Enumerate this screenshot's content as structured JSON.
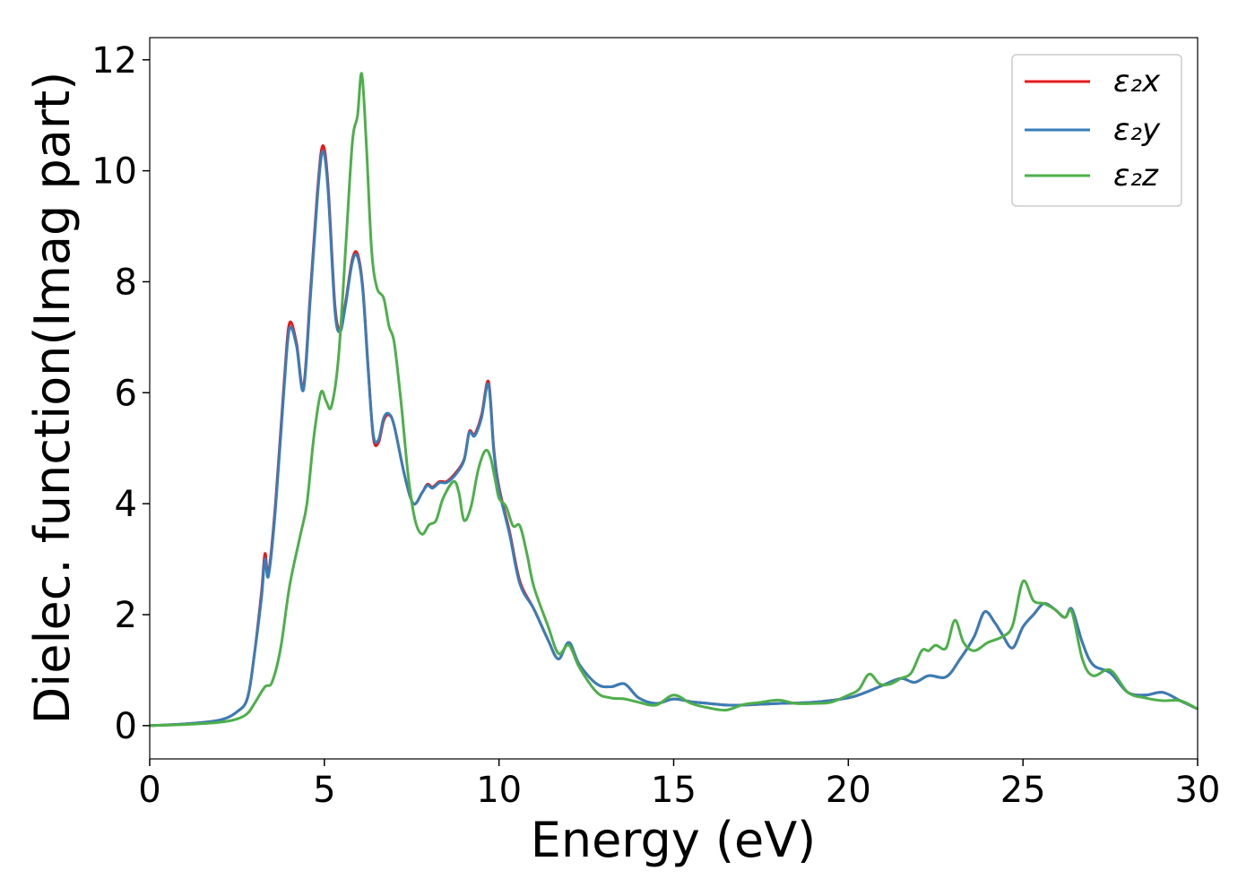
{
  "chart_data": {
    "type": "line",
    "title": "",
    "xlabel": "Energy (eV)",
    "ylabel": "Dielec. function(Imag part)",
    "xlim": [
      0,
      30
    ],
    "ylim": [
      -0.6,
      12.4
    ],
    "xticks": [
      0,
      5,
      10,
      15,
      20,
      25,
      30
    ],
    "yticks": [
      0,
      2,
      4,
      6,
      8,
      10,
      12
    ],
    "grid": false,
    "legend_position": "top-right",
    "series": [
      {
        "name": "ε₂x",
        "color": "#e41a1c",
        "points": [
          [
            0,
            0
          ],
          [
            1,
            0.03
          ],
          [
            2,
            0.1
          ],
          [
            2.5,
            0.25
          ],
          [
            2.8,
            0.5
          ],
          [
            3.0,
            1.3
          ],
          [
            3.2,
            2.4
          ],
          [
            3.3,
            3.1
          ],
          [
            3.4,
            2.75
          ],
          [
            3.6,
            4.0
          ],
          [
            3.85,
            6.2
          ],
          [
            4.0,
            7.25
          ],
          [
            4.2,
            6.9
          ],
          [
            4.4,
            6.1
          ],
          [
            4.6,
            7.8
          ],
          [
            4.8,
            9.6
          ],
          [
            4.95,
            10.45
          ],
          [
            5.1,
            9.8
          ],
          [
            5.3,
            7.6
          ],
          [
            5.45,
            7.15
          ],
          [
            5.6,
            7.6
          ],
          [
            5.8,
            8.4
          ],
          [
            5.95,
            8.5
          ],
          [
            6.1,
            7.9
          ],
          [
            6.25,
            6.5
          ],
          [
            6.4,
            5.2
          ],
          [
            6.55,
            5.1
          ],
          [
            6.7,
            5.5
          ],
          [
            6.85,
            5.6
          ],
          [
            7.0,
            5.4
          ],
          [
            7.3,
            4.5
          ],
          [
            7.55,
            4.0
          ],
          [
            7.8,
            4.2
          ],
          [
            7.95,
            4.35
          ],
          [
            8.1,
            4.3
          ],
          [
            8.3,
            4.4
          ],
          [
            8.5,
            4.4
          ],
          [
            8.75,
            4.55
          ],
          [
            9.0,
            4.8
          ],
          [
            9.15,
            5.3
          ],
          [
            9.3,
            5.25
          ],
          [
            9.5,
            5.6
          ],
          [
            9.7,
            6.2
          ],
          [
            9.85,
            5.0
          ],
          [
            10.0,
            4.3
          ],
          [
            10.3,
            3.5
          ],
          [
            10.6,
            2.6
          ],
          [
            11.0,
            2.1
          ],
          [
            11.4,
            1.55
          ],
          [
            11.7,
            1.2
          ],
          [
            12.0,
            1.5
          ],
          [
            12.3,
            1.1
          ],
          [
            12.8,
            0.75
          ],
          [
            13.2,
            0.7
          ],
          [
            13.6,
            0.75
          ],
          [
            14.0,
            0.5
          ],
          [
            14.5,
            0.4
          ],
          [
            15.0,
            0.48
          ],
          [
            15.5,
            0.43
          ],
          [
            16.0,
            0.4
          ],
          [
            16.5,
            0.37
          ],
          [
            17.0,
            0.37
          ],
          [
            18.0,
            0.4
          ],
          [
            19.0,
            0.42
          ],
          [
            20.0,
            0.5
          ],
          [
            20.5,
            0.6
          ],
          [
            21.0,
            0.73
          ],
          [
            21.5,
            0.85
          ],
          [
            21.9,
            0.78
          ],
          [
            22.3,
            0.9
          ],
          [
            22.8,
            0.88
          ],
          [
            23.2,
            1.2
          ],
          [
            23.6,
            1.6
          ],
          [
            23.9,
            2.05
          ],
          [
            24.2,
            1.85
          ],
          [
            24.4,
            1.65
          ],
          [
            24.7,
            1.4
          ],
          [
            25.0,
            1.78
          ],
          [
            25.3,
            2.0
          ],
          [
            25.6,
            2.2
          ],
          [
            25.9,
            2.1
          ],
          [
            26.2,
            1.95
          ],
          [
            26.4,
            2.1
          ],
          [
            26.7,
            1.5
          ],
          [
            27.0,
            1.1
          ],
          [
            27.5,
            0.95
          ],
          [
            28.0,
            0.6
          ],
          [
            28.5,
            0.55
          ],
          [
            29.0,
            0.6
          ],
          [
            29.5,
            0.45
          ],
          [
            30.0,
            0.3
          ]
        ]
      },
      {
        "name": "ε₂y",
        "color": "#377eb8",
        "points": [
          [
            0,
            0
          ],
          [
            1,
            0.03
          ],
          [
            2,
            0.1
          ],
          [
            2.5,
            0.25
          ],
          [
            2.8,
            0.5
          ],
          [
            3.0,
            1.3
          ],
          [
            3.2,
            2.3
          ],
          [
            3.3,
            3.0
          ],
          [
            3.4,
            2.7
          ],
          [
            3.6,
            3.9
          ],
          [
            3.85,
            6.1
          ],
          [
            4.0,
            7.15
          ],
          [
            4.2,
            6.85
          ],
          [
            4.4,
            6.05
          ],
          [
            4.6,
            7.7
          ],
          [
            4.8,
            9.5
          ],
          [
            4.95,
            10.35
          ],
          [
            5.1,
            9.7
          ],
          [
            5.3,
            7.5
          ],
          [
            5.45,
            7.1
          ],
          [
            5.6,
            7.55
          ],
          [
            5.8,
            8.35
          ],
          [
            5.95,
            8.45
          ],
          [
            6.1,
            7.85
          ],
          [
            6.25,
            6.45
          ],
          [
            6.4,
            5.25
          ],
          [
            6.55,
            5.15
          ],
          [
            6.7,
            5.55
          ],
          [
            6.85,
            5.62
          ],
          [
            7.0,
            5.4
          ],
          [
            7.3,
            4.5
          ],
          [
            7.55,
            4.0
          ],
          [
            7.8,
            4.2
          ],
          [
            7.95,
            4.33
          ],
          [
            8.1,
            4.28
          ],
          [
            8.3,
            4.38
          ],
          [
            8.5,
            4.38
          ],
          [
            8.75,
            4.52
          ],
          [
            9.0,
            4.78
          ],
          [
            9.15,
            5.28
          ],
          [
            9.3,
            5.22
          ],
          [
            9.5,
            5.55
          ],
          [
            9.7,
            6.15
          ],
          [
            9.85,
            4.95
          ],
          [
            10.0,
            4.25
          ],
          [
            10.3,
            3.45
          ],
          [
            10.6,
            2.55
          ],
          [
            11.0,
            2.1
          ],
          [
            11.4,
            1.55
          ],
          [
            11.7,
            1.2
          ],
          [
            12.0,
            1.5
          ],
          [
            12.3,
            1.1
          ],
          [
            12.8,
            0.75
          ],
          [
            13.2,
            0.7
          ],
          [
            13.6,
            0.75
          ],
          [
            14.0,
            0.5
          ],
          [
            14.5,
            0.4
          ],
          [
            15.0,
            0.48
          ],
          [
            15.5,
            0.43
          ],
          [
            16.0,
            0.4
          ],
          [
            16.5,
            0.37
          ],
          [
            17.0,
            0.37
          ],
          [
            18.0,
            0.4
          ],
          [
            19.0,
            0.42
          ],
          [
            20.0,
            0.5
          ],
          [
            20.5,
            0.6
          ],
          [
            21.0,
            0.73
          ],
          [
            21.5,
            0.85
          ],
          [
            21.9,
            0.78
          ],
          [
            22.3,
            0.9
          ],
          [
            22.8,
            0.88
          ],
          [
            23.2,
            1.2
          ],
          [
            23.6,
            1.6
          ],
          [
            23.9,
            2.05
          ],
          [
            24.2,
            1.85
          ],
          [
            24.4,
            1.65
          ],
          [
            24.7,
            1.4
          ],
          [
            25.0,
            1.78
          ],
          [
            25.3,
            2.0
          ],
          [
            25.6,
            2.2
          ],
          [
            25.9,
            2.1
          ],
          [
            26.2,
            1.95
          ],
          [
            26.4,
            2.1
          ],
          [
            26.7,
            1.5
          ],
          [
            27.0,
            1.1
          ],
          [
            27.5,
            0.95
          ],
          [
            28.0,
            0.6
          ],
          [
            28.5,
            0.55
          ],
          [
            29.0,
            0.6
          ],
          [
            29.5,
            0.45
          ],
          [
            30.0,
            0.3
          ]
        ]
      },
      {
        "name": "ε₂z",
        "color": "#4daf4a",
        "points": [
          [
            0,
            0
          ],
          [
            1,
            0.02
          ],
          [
            2,
            0.06
          ],
          [
            2.5,
            0.12
          ],
          [
            2.8,
            0.22
          ],
          [
            3.0,
            0.4
          ],
          [
            3.3,
            0.7
          ],
          [
            3.5,
            0.78
          ],
          [
            3.75,
            1.4
          ],
          [
            4.0,
            2.5
          ],
          [
            4.3,
            3.4
          ],
          [
            4.5,
            4.0
          ],
          [
            4.7,
            5.2
          ],
          [
            4.9,
            6.0
          ],
          [
            5.05,
            5.85
          ],
          [
            5.2,
            5.75
          ],
          [
            5.4,
            6.6
          ],
          [
            5.6,
            8.5
          ],
          [
            5.8,
            10.5
          ],
          [
            5.95,
            11.0
          ],
          [
            6.07,
            11.75
          ],
          [
            6.2,
            10.5
          ],
          [
            6.35,
            8.6
          ],
          [
            6.5,
            7.9
          ],
          [
            6.7,
            7.7
          ],
          [
            6.85,
            7.2
          ],
          [
            7.0,
            6.9
          ],
          [
            7.2,
            5.8
          ],
          [
            7.4,
            4.5
          ],
          [
            7.6,
            3.7
          ],
          [
            7.8,
            3.45
          ],
          [
            8.0,
            3.62
          ],
          [
            8.2,
            3.7
          ],
          [
            8.4,
            4.1
          ],
          [
            8.7,
            4.4
          ],
          [
            8.85,
            4.2
          ],
          [
            9.0,
            3.7
          ],
          [
            9.2,
            3.95
          ],
          [
            9.4,
            4.6
          ],
          [
            9.6,
            4.95
          ],
          [
            9.75,
            4.85
          ],
          [
            9.9,
            4.4
          ],
          [
            10.0,
            4.1
          ],
          [
            10.2,
            3.95
          ],
          [
            10.4,
            3.6
          ],
          [
            10.6,
            3.6
          ],
          [
            10.8,
            3.1
          ],
          [
            11.0,
            2.5
          ],
          [
            11.4,
            1.8
          ],
          [
            11.7,
            1.3
          ],
          [
            12.0,
            1.45
          ],
          [
            12.3,
            1.05
          ],
          [
            12.8,
            0.6
          ],
          [
            13.2,
            0.5
          ],
          [
            13.6,
            0.48
          ],
          [
            14.0,
            0.42
          ],
          [
            14.5,
            0.37
          ],
          [
            15.0,
            0.55
          ],
          [
            15.5,
            0.4
          ],
          [
            16.0,
            0.32
          ],
          [
            16.5,
            0.28
          ],
          [
            17.0,
            0.38
          ],
          [
            17.5,
            0.42
          ],
          [
            18.0,
            0.46
          ],
          [
            18.5,
            0.4
          ],
          [
            19.0,
            0.4
          ],
          [
            19.5,
            0.42
          ],
          [
            20.0,
            0.55
          ],
          [
            20.3,
            0.65
          ],
          [
            20.6,
            0.93
          ],
          [
            20.9,
            0.75
          ],
          [
            21.2,
            0.75
          ],
          [
            21.5,
            0.85
          ],
          [
            21.8,
            0.95
          ],
          [
            22.1,
            1.35
          ],
          [
            22.3,
            1.35
          ],
          [
            22.5,
            1.45
          ],
          [
            22.8,
            1.4
          ],
          [
            23.05,
            1.9
          ],
          [
            23.3,
            1.5
          ],
          [
            23.6,
            1.35
          ],
          [
            24.0,
            1.5
          ],
          [
            24.4,
            1.6
          ],
          [
            24.7,
            1.8
          ],
          [
            25.0,
            2.6
          ],
          [
            25.3,
            2.25
          ],
          [
            25.6,
            2.2
          ],
          [
            25.9,
            2.1
          ],
          [
            26.2,
            1.95
          ],
          [
            26.4,
            2.05
          ],
          [
            26.7,
            1.2
          ],
          [
            27.0,
            0.9
          ],
          [
            27.5,
            1.0
          ],
          [
            28.0,
            0.6
          ],
          [
            28.5,
            0.5
          ],
          [
            29.0,
            0.45
          ],
          [
            29.5,
            0.45
          ],
          [
            30.0,
            0.3
          ]
        ]
      }
    ]
  }
}
